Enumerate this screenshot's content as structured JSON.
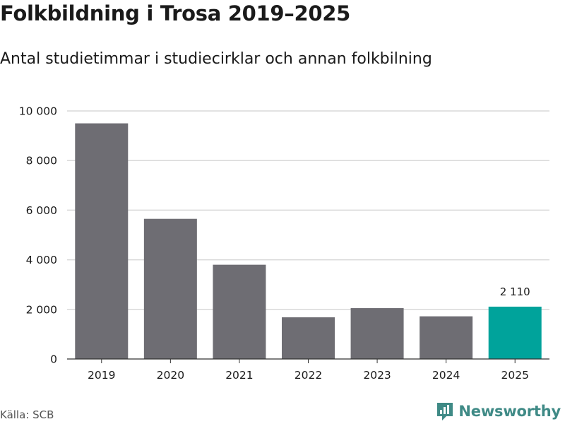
{
  "title": "Folkbildning i Trosa 2019–2025",
  "subtitle": "Antal studietimmar i studiecirklar och annan folkbilning",
  "source": "Källa: SCB",
  "brand": "Newsworthy",
  "colors": {
    "bar": "#6e6d73",
    "highlight": "#00a39b",
    "grid": "#d9d9d9",
    "axis": "#333333",
    "brand": "#3f8a86"
  },
  "chart_data": {
    "type": "bar",
    "title": "Folkbildning i Trosa 2019–2025",
    "subtitle": "Antal studietimmar i studiecirklar och annan folkbilning",
    "xlabel": "",
    "ylabel": "",
    "categories": [
      "2019",
      "2020",
      "2021",
      "2022",
      "2023",
      "2024",
      "2025"
    ],
    "values": [
      9500,
      5650,
      3800,
      1680,
      2050,
      1720,
      2110
    ],
    "highlight_index": 6,
    "ylim": [
      0,
      10000
    ],
    "yticks": [
      0,
      2000,
      4000,
      6000,
      8000,
      10000
    ],
    "ytick_labels": [
      "0",
      "2 000",
      "4 000",
      "6 000",
      "8 000",
      "10 000"
    ],
    "data_labels": [
      {
        "category": "2025",
        "text": "2 110"
      }
    ],
    "grid": true,
    "legend": "none"
  }
}
